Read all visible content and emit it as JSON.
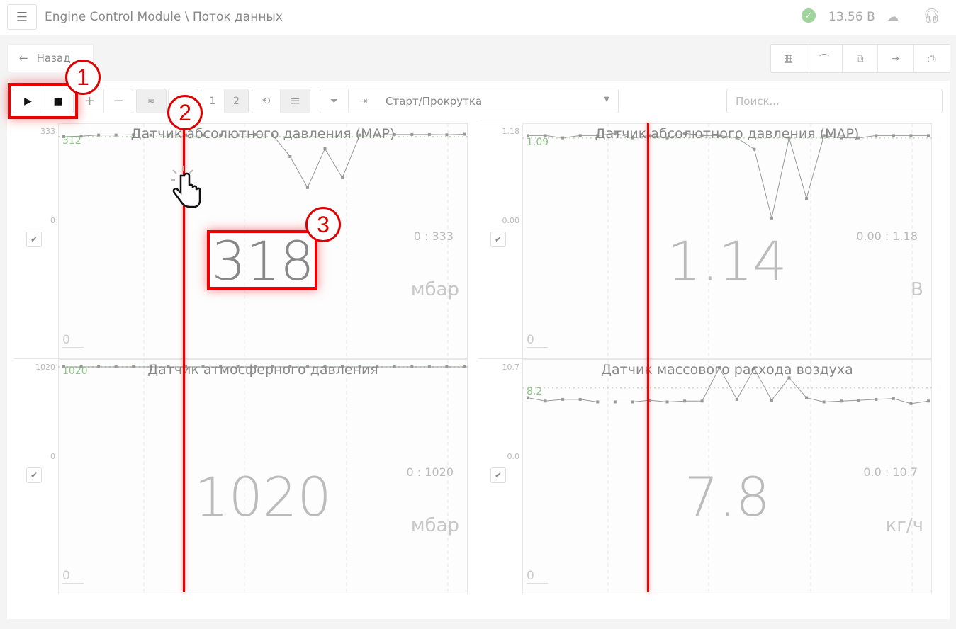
{
  "header": {
    "breadcrumb": "Engine Control Module \\ Поток данных",
    "voltage": "13.56 В",
    "status_icon": "check-circle-icon",
    "icons": [
      "cloud-download-icon",
      "headset-icon"
    ]
  },
  "nav": {
    "back_label": "Назад",
    "right_tools": [
      "grid-icon",
      "chart-icon",
      "fit-icon",
      "import-icon",
      "print-icon"
    ]
  },
  "toolbar": {
    "play": "▶",
    "stop": "■",
    "zoom_in": "+",
    "zoom_out": "−",
    "smooth": "≂",
    "page1": "1",
    "page2": "2",
    "clear_icon": "reset-icon",
    "list_icon": "list-icon",
    "filter_icon": "filter-clear-icon",
    "skip_icon": "skip-end-icon",
    "mode_select": "Старт/Прокрутка",
    "search_placeholder": "Поиск..."
  },
  "annotations": {
    "c1": "1",
    "c2": "2",
    "c3": "3",
    "accent": "#e00000"
  },
  "panels": [
    {
      "title": "Датчик абсолютного давления (MAP)",
      "ymax": "333",
      "ymin": "0",
      "avg": "312",
      "value": "318",
      "range": "0 : 333",
      "unit": "мбар",
      "zero": "0",
      "highlight": true,
      "min": 0,
      "max": 333,
      "avg_value": 312,
      "series": [
        312,
        314,
        318,
        318,
        319,
        318,
        318,
        318,
        318,
        318,
        318,
        320,
        318,
        238,
        122,
        267,
        159,
        318,
        318,
        320,
        320,
        320,
        319,
        321
      ]
    },
    {
      "title": "Датчик абсолютного давления (MAP)",
      "ymax": "1.18",
      "ymin": "0.00",
      "avg": "1.09",
      "value": "1.14",
      "range": "0.00 : 1.18",
      "unit": "В",
      "zero": "0",
      "min": 0,
      "max": 1.18,
      "avg_value": 1.09,
      "series": [
        1.12,
        1.12,
        1.09,
        1.12,
        1.12,
        1.15,
        1.09,
        1.12,
        1.09,
        1.15,
        1.12,
        1.12,
        1.09,
        0.94,
        0.03,
        1.09,
        0.29,
        1.12,
        1.09,
        1.09,
        1.12,
        1.12,
        1.12,
        1.12
      ]
    },
    {
      "title": "Датчик атмосферного давления",
      "ymax": "1020",
      "ymin": "0",
      "avg": "1020",
      "value": "1020",
      "range": "0 : 1020",
      "unit": "мбар",
      "zero": "0",
      "min": 0,
      "max": 1020,
      "avg_value": 1020,
      "series": [
        1020,
        1020,
        1020,
        1020,
        1020,
        1020,
        1020,
        1020,
        1020,
        1020,
        1020,
        1020,
        1020,
        1020,
        1020,
        1020,
        1020,
        1020,
        1020,
        1020,
        1020,
        1020,
        1020,
        1020
      ]
    },
    {
      "title": "Датчик массового расхода воздуха",
      "ymax": "10.7",
      "ymin": "0.0",
      "avg": "8.2",
      "value": "7.8",
      "range": "0.0 : 10.7",
      "unit": "кг/ч",
      "zero": "0",
      "min": 0,
      "max": 10.7,
      "avg_value": 8.2,
      "series": [
        7.0,
        6.6,
        6.8,
        6.8,
        6.5,
        6.5,
        6.5,
        6.7,
        6.5,
        6.6,
        6.6,
        10.6,
        6.8,
        10.5,
        6.7,
        9.4,
        7.0,
        6.5,
        6.6,
        6.7,
        6.8,
        6.9,
        6.3,
        6.6
      ]
    }
  ]
}
